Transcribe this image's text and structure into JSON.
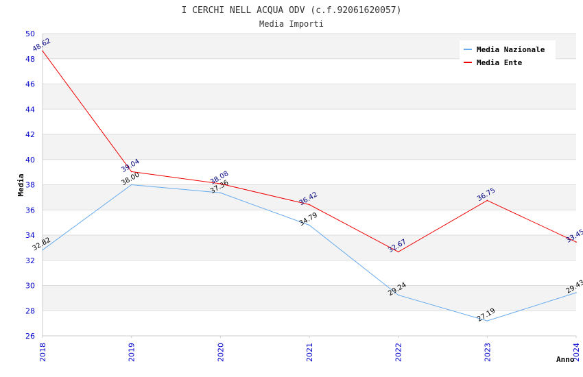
{
  "chart_data": {
    "type": "line",
    "title": "I CERCHI NELL ACQUA ODV (c.f.92061620057)",
    "subtitle": "Media Importi",
    "ylabel": "Media",
    "xlabel": "Anno",
    "x": [
      "2018",
      "2019",
      "2020",
      "2021",
      "2022",
      "2023",
      "2024"
    ],
    "ylim": [
      26,
      50
    ],
    "yticks": [
      26,
      28,
      30,
      32,
      34,
      36,
      38,
      40,
      42,
      44,
      46,
      48,
      50
    ],
    "grid": true,
    "legend_position": "top-right",
    "series": [
      {
        "name": "Media Nazionale",
        "color": "#66aaee",
        "label_color": "#000000",
        "values": [
          32.82,
          38.0,
          37.36,
          34.79,
          29.24,
          27.19,
          29.43
        ],
        "labels": [
          "32.82",
          "38.00",
          "37.36",
          "34.79",
          "29.24",
          "27.19",
          "29.43"
        ]
      },
      {
        "name": "Media Ente",
        "color": "#ee0000",
        "label_color": "#000080",
        "values": [
          48.62,
          39.04,
          38.08,
          36.42,
          32.67,
          36.75,
          33.45
        ],
        "labels": [
          "48.62",
          "39.04",
          "38.08",
          "36.42",
          "32.67",
          "36.75",
          "33.45"
        ]
      }
    ]
  }
}
